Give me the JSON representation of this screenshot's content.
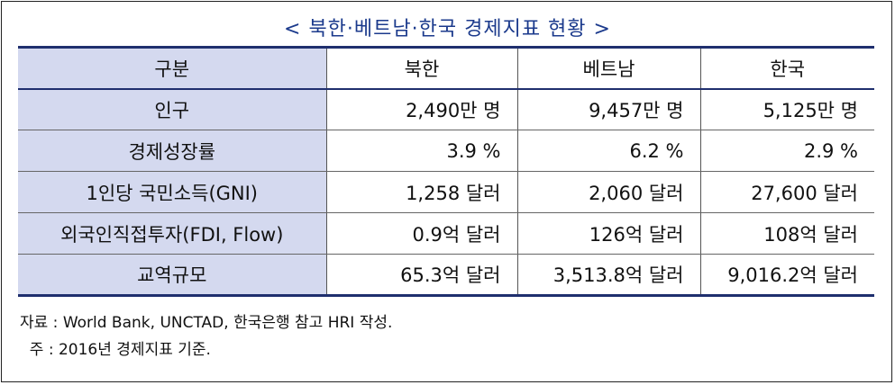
{
  "title": "< 북한·베트남·한국 경제지표 현황 >",
  "headers": [
    "구분",
    "북한",
    "베트남",
    "한국"
  ],
  "rows": [
    {
      "label": "인구",
      "values": [
        "2,490만 명",
        "9,457만 명",
        "5,125만 명"
      ]
    },
    {
      "label": "경제성장률",
      "values": [
        "3.9 %",
        "6.2 %",
        "2.9 %"
      ]
    },
    {
      "label": "1인당 국민소득(GNI)",
      "values": [
        "1,258 달러",
        "2,060 달러",
        "27,600 달러"
      ]
    },
    {
      "label": "외국인직접투자(FDI, Flow)",
      "values": [
        "0.9억 달러",
        "126억 달러",
        "108억 달러"
      ]
    },
    {
      "label": "교역규모",
      "values": [
        "65.3억 달러",
        "3,513.8억 달러",
        "9,016.2억 달러"
      ]
    }
  ],
  "notes": {
    "source": "자료 : World Bank, UNCTAD, 한국은행 참고 HRI 작성.",
    "footnote": "  주 : 2016년 경제지표 기준."
  },
  "colors": {
    "header_fill": "#d4d9ef",
    "rule": "#1f2f6e",
    "title": "#1b3a8c"
  }
}
